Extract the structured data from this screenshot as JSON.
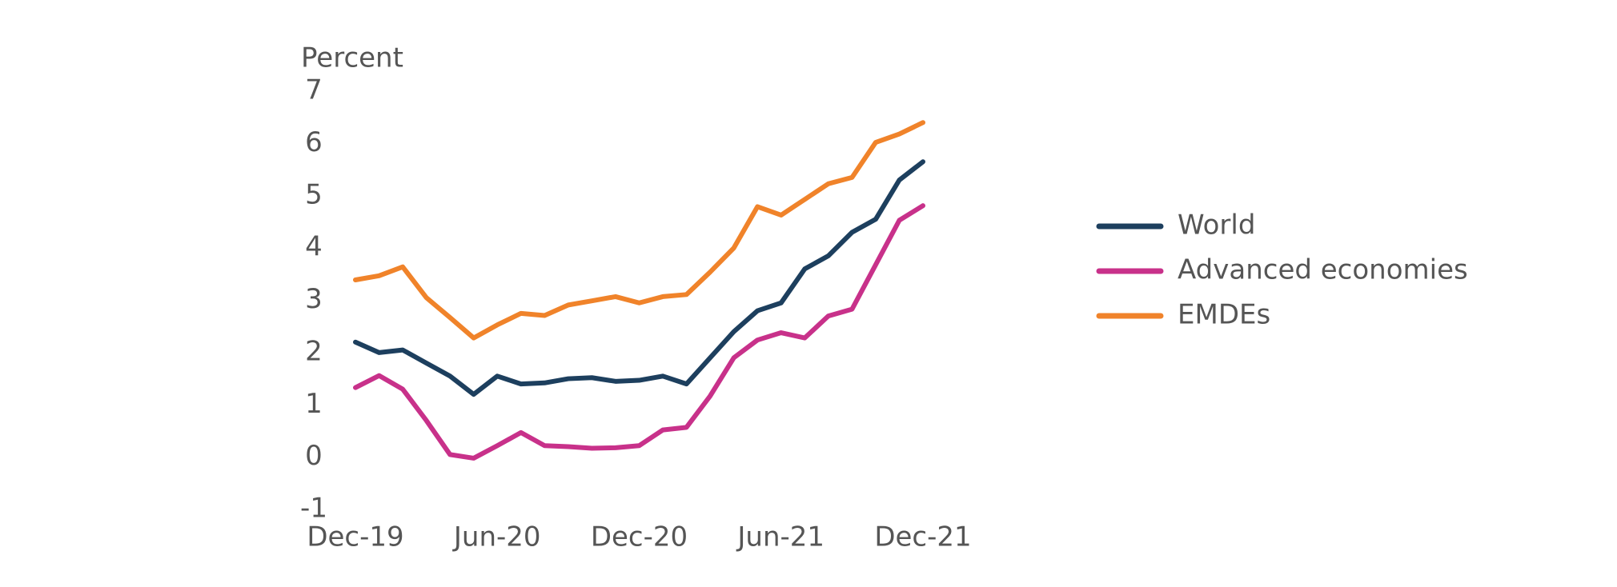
{
  "chart_data": {
    "type": "line",
    "y_axis_label": "Percent",
    "categories": [
      "Dec-19",
      null,
      null,
      null,
      null,
      null,
      "Jun-20",
      null,
      null,
      null,
      null,
      null,
      "Dec-20",
      null,
      null,
      null,
      null,
      null,
      "Jun-21",
      null,
      null,
      null,
      null,
      null,
      "Dec-21"
    ],
    "series": [
      {
        "name": "World",
        "color": "#1d3f5e",
        "values": [
          2.2,
          2.0,
          2.05,
          1.8,
          1.55,
          1.2,
          1.55,
          1.4,
          1.42,
          1.5,
          1.52,
          1.45,
          1.47,
          1.55,
          1.4,
          1.9,
          2.4,
          2.8,
          2.95,
          3.6,
          3.85,
          4.3,
          4.55,
          5.3,
          5.65
        ]
      },
      {
        "name": "Advanced economies",
        "color": "#c8318a",
        "values": [
          1.33,
          1.56,
          1.3,
          0.7,
          0.05,
          -0.02,
          0.22,
          0.47,
          0.22,
          0.2,
          0.17,
          0.18,
          0.22,
          0.52,
          0.57,
          1.17,
          1.9,
          2.24,
          2.38,
          2.28,
          2.7,
          2.83,
          3.68,
          4.53,
          4.81
        ]
      },
      {
        "name": "EMDEs",
        "color": "#f0832a",
        "values": [
          3.39,
          3.47,
          3.64,
          3.05,
          2.67,
          2.28,
          2.53,
          2.75,
          2.71,
          2.91,
          2.99,
          3.07,
          2.95,
          3.07,
          3.11,
          3.54,
          4.0,
          4.79,
          4.63,
          4.93,
          5.23,
          5.35,
          6.02,
          6.18,
          6.4
        ]
      }
    ],
    "ylim": [
      -1,
      7
    ],
    "yticks": [
      -1,
      0,
      1,
      2,
      3,
      4,
      5,
      6,
      7
    ],
    "grid": false,
    "legend": "right"
  }
}
